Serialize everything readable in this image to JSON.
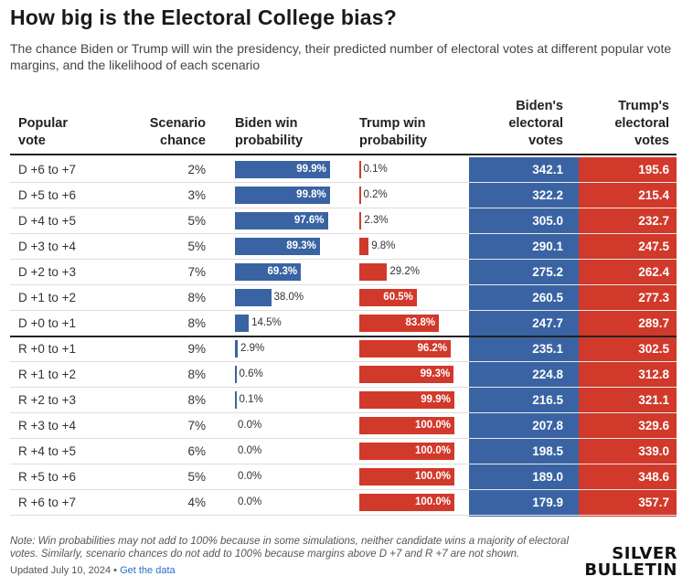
{
  "title": "How big is the Electoral College bias?",
  "subtitle": "The chance Biden or Trump will win the presidency, their predicted number of electoral votes at different popular vote margins, and the likelihood of each scenario",
  "headers": {
    "popular_vote": [
      "Popular",
      "vote"
    ],
    "scenario_chance": [
      "Scenario",
      "chance"
    ],
    "biden_win": [
      "Biden win",
      "probability"
    ],
    "trump_win": [
      "Trump win",
      "probability"
    ],
    "biden_ev": [
      "Biden's",
      "electoral",
      "votes"
    ],
    "trump_ev": [
      "Trump's",
      "electoral",
      "votes"
    ]
  },
  "colors": {
    "biden": "#3a63a3",
    "trump": "#d1392b"
  },
  "chart_data": {
    "type": "table",
    "rows": [
      {
        "popular_vote": "D +6 to +7",
        "scenario_chance": "2%",
        "biden_win": 99.9,
        "biden_win_label": "99.9%",
        "trump_win": 0.1,
        "trump_win_label": "0.1%",
        "biden_ev": "342.1",
        "trump_ev": "195.6"
      },
      {
        "popular_vote": "D +5 to +6",
        "scenario_chance": "3%",
        "biden_win": 99.8,
        "biden_win_label": "99.8%",
        "trump_win": 0.2,
        "trump_win_label": "0.2%",
        "biden_ev": "322.2",
        "trump_ev": "215.4"
      },
      {
        "popular_vote": "D +4 to +5",
        "scenario_chance": "5%",
        "biden_win": 97.6,
        "biden_win_label": "97.6%",
        "trump_win": 2.3,
        "trump_win_label": "2.3%",
        "biden_ev": "305.0",
        "trump_ev": "232.7"
      },
      {
        "popular_vote": "D +3 to +4",
        "scenario_chance": "5%",
        "biden_win": 89.3,
        "biden_win_label": "89.3%",
        "trump_win": 9.8,
        "trump_win_label": "9.8%",
        "biden_ev": "290.1",
        "trump_ev": "247.5"
      },
      {
        "popular_vote": "D +2 to +3",
        "scenario_chance": "7%",
        "biden_win": 69.3,
        "biden_win_label": "69.3%",
        "trump_win": 29.2,
        "trump_win_label": "29.2%",
        "biden_ev": "275.2",
        "trump_ev": "262.4"
      },
      {
        "popular_vote": "D +1 to +2",
        "scenario_chance": "8%",
        "biden_win": 38.0,
        "biden_win_label": "38.0%",
        "trump_win": 60.5,
        "trump_win_label": "60.5%",
        "biden_ev": "260.5",
        "trump_ev": "277.3"
      },
      {
        "popular_vote": "D +0 to +1",
        "scenario_chance": "8%",
        "biden_win": 14.5,
        "biden_win_label": "14.5%",
        "trump_win": 83.8,
        "trump_win_label": "83.8%",
        "biden_ev": "247.7",
        "trump_ev": "289.7"
      },
      {
        "popular_vote": "R +0 to +1",
        "scenario_chance": "9%",
        "biden_win": 2.9,
        "biden_win_label": "2.9%",
        "trump_win": 96.2,
        "trump_win_label": "96.2%",
        "biden_ev": "235.1",
        "trump_ev": "302.5"
      },
      {
        "popular_vote": "R +1 to +2",
        "scenario_chance": "8%",
        "biden_win": 0.6,
        "biden_win_label": "0.6%",
        "trump_win": 99.3,
        "trump_win_label": "99.3%",
        "biden_ev": "224.8",
        "trump_ev": "312.8"
      },
      {
        "popular_vote": "R +2 to +3",
        "scenario_chance": "8%",
        "biden_win": 0.1,
        "biden_win_label": "0.1%",
        "trump_win": 99.9,
        "trump_win_label": "99.9%",
        "biden_ev": "216.5",
        "trump_ev": "321.1"
      },
      {
        "popular_vote": "R +3 to +4",
        "scenario_chance": "7%",
        "biden_win": 0.0,
        "biden_win_label": "0.0%",
        "trump_win": 100.0,
        "trump_win_label": "100.0%",
        "biden_ev": "207.8",
        "trump_ev": "329.6"
      },
      {
        "popular_vote": "R +4 to +5",
        "scenario_chance": "6%",
        "biden_win": 0.0,
        "biden_win_label": "0.0%",
        "trump_win": 100.0,
        "trump_win_label": "100.0%",
        "biden_ev": "198.5",
        "trump_ev": "339.0"
      },
      {
        "popular_vote": "R +5 to +6",
        "scenario_chance": "5%",
        "biden_win": 0.0,
        "biden_win_label": "0.0%",
        "trump_win": 100.0,
        "trump_win_label": "100.0%",
        "biden_ev": "189.0",
        "trump_ev": "348.6"
      },
      {
        "popular_vote": "R +6 to +7",
        "scenario_chance": "4%",
        "biden_win": 0.0,
        "biden_win_label": "0.0%",
        "trump_win": 100.0,
        "trump_win_label": "100.0%",
        "biden_ev": "179.9",
        "trump_ev": "357.7"
      }
    ]
  },
  "footnote": "Note: Win probabilities may not add to 100% because in some simulations, neither candidate wins a majority of electoral votes. Similarly, scenario chances do not add to 100% because margins above D +7 and R +7 are not shown.",
  "updated": "Updated July 10, 2024",
  "separator": "•",
  "get_data_link": "Get the data",
  "logo": [
    "SILVER",
    "BULLETIN"
  ]
}
